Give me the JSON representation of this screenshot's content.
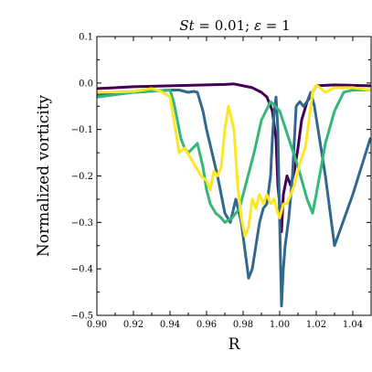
{
  "chart_data": {
    "type": "line",
    "title": "St = 0.01; ε = 1",
    "title_parts": {
      "st": "St",
      "st_value": " = 0.01; ",
      "eps": "ε",
      "eps_value": " = 1"
    },
    "xlabel": "R",
    "ylabel": "Normalized vorticity",
    "xlim": [
      0.9,
      1.05
    ],
    "ylim": [
      -0.5,
      0.1
    ],
    "xticks": [
      "0.90",
      "0.92",
      "0.94",
      "0.96",
      "0.98",
      "1.00",
      "1.02",
      "1.04"
    ],
    "yticks": [
      "0.1",
      "0.0",
      "−0.1",
      "−0.2",
      "−0.3",
      "−0.4",
      "−0.5"
    ],
    "grid": false,
    "series": [
      {
        "color": "#440154",
        "x": [
          0.9,
          0.92,
          0.94,
          0.96,
          0.97,
          0.975,
          0.98,
          0.985,
          0.99,
          0.993,
          0.996,
          0.998,
          0.999,
          1.0,
          1.001,
          1.002,
          1.004,
          1.006,
          1.008,
          1.01,
          1.012,
          1.015,
          1.02,
          1.03,
          1.04,
          1.05
        ],
        "y": [
          -0.012,
          -0.008,
          -0.006,
          -0.004,
          -0.003,
          -0.002,
          -0.006,
          -0.01,
          -0.02,
          -0.03,
          -0.06,
          -0.12,
          -0.22,
          -0.26,
          -0.32,
          -0.24,
          -0.2,
          -0.22,
          -0.19,
          -0.14,
          -0.08,
          -0.04,
          -0.006,
          -0.004,
          -0.005,
          -0.006
        ]
      },
      {
        "color": "#31688e",
        "x": [
          0.9,
          0.92,
          0.94,
          0.945,
          0.95,
          0.953,
          0.955,
          0.958,
          0.96,
          0.963,
          0.966,
          0.968,
          0.97,
          0.973,
          0.976,
          0.979,
          0.981,
          0.983,
          0.985,
          0.987,
          0.989,
          0.991,
          0.993,
          0.995,
          0.996,
          0.997,
          0.998,
          0.999,
          1.0,
          1.001,
          1.002,
          1.003,
          1.005,
          1.007,
          1.009,
          1.011,
          1.013,
          1.015,
          1.017,
          1.019,
          1.021,
          1.023,
          1.025,
          1.03,
          1.04,
          1.05
        ],
        "y": [
          -0.025,
          -0.02,
          -0.015,
          -0.015,
          -0.02,
          -0.018,
          -0.02,
          -0.06,
          -0.1,
          -0.15,
          -0.2,
          -0.24,
          -0.28,
          -0.3,
          -0.25,
          -0.3,
          -0.36,
          -0.42,
          -0.4,
          -0.35,
          -0.3,
          -0.27,
          -0.26,
          -0.2,
          -0.12,
          -0.06,
          -0.03,
          -0.1,
          -0.3,
          -0.48,
          -0.4,
          -0.35,
          -0.29,
          -0.2,
          -0.05,
          -0.04,
          -0.05,
          -0.04,
          -0.02,
          -0.05,
          -0.1,
          -0.15,
          -0.2,
          -0.35,
          -0.24,
          -0.12
        ]
      },
      {
        "color": "#35b779",
        "x": [
          0.9,
          0.92,
          0.94,
          0.942,
          0.944,
          0.946,
          0.948,
          0.95,
          0.955,
          0.958,
          0.96,
          0.962,
          0.965,
          0.968,
          0.97,
          0.974,
          0.978,
          0.982,
          0.986,
          0.99,
          0.995,
          1.0,
          1.005,
          1.01,
          1.015,
          1.018,
          1.02,
          1.025,
          1.03,
          1.035,
          1.04,
          1.05
        ],
        "y": [
          -0.03,
          -0.02,
          -0.015,
          -0.04,
          -0.08,
          -0.12,
          -0.14,
          -0.15,
          -0.13,
          -0.18,
          -0.23,
          -0.26,
          -0.28,
          -0.29,
          -0.3,
          -0.29,
          -0.27,
          -0.21,
          -0.15,
          -0.08,
          -0.04,
          -0.06,
          -0.12,
          -0.18,
          -0.25,
          -0.28,
          -0.24,
          -0.13,
          -0.06,
          -0.02,
          -0.015,
          -0.015
        ]
      },
      {
        "color": "#fde725",
        "x": [
          0.9,
          0.92,
          0.93,
          0.935,
          0.94,
          0.943,
          0.945,
          0.948,
          0.951,
          0.954,
          0.957,
          0.96,
          0.962,
          0.964,
          0.966,
          0.968,
          0.97,
          0.972,
          0.975,
          0.977,
          0.979,
          0.981,
          0.983,
          0.985,
          0.987,
          0.989,
          0.991,
          0.993,
          0.995,
          0.997,
          0.999,
          1.0,
          1.002,
          1.004,
          1.006,
          1.008,
          1.01,
          1.012,
          1.014,
          1.016,
          1.018,
          1.02,
          1.022,
          1.025,
          1.03,
          1.04,
          1.05
        ],
        "y": [
          -0.02,
          -0.018,
          -0.012,
          -0.018,
          -0.03,
          -0.1,
          -0.15,
          -0.14,
          -0.16,
          -0.18,
          -0.2,
          -0.21,
          -0.23,
          -0.19,
          -0.2,
          -0.18,
          -0.1,
          -0.05,
          -0.1,
          -0.22,
          -0.29,
          -0.33,
          -0.31,
          -0.25,
          -0.27,
          -0.24,
          -0.26,
          -0.24,
          -0.26,
          -0.25,
          -0.28,
          -0.29,
          -0.26,
          -0.26,
          -0.24,
          -0.22,
          -0.19,
          -0.16,
          -0.14,
          -0.08,
          -0.02,
          -0.005,
          -0.01,
          -0.02,
          -0.01,
          -0.01,
          -0.015
        ]
      }
    ]
  }
}
